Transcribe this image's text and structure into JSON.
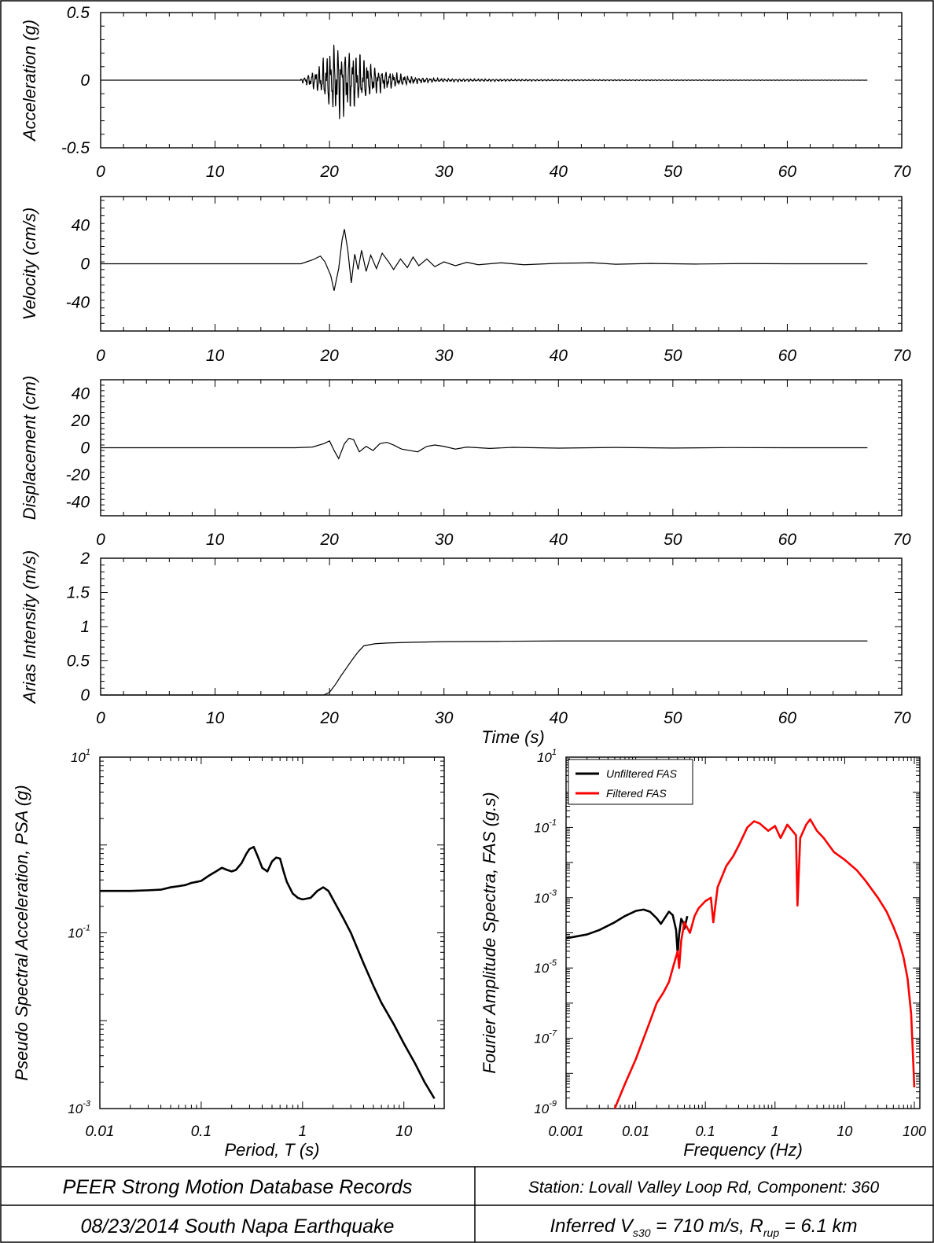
{
  "colors": {
    "unfiltered": "#000000",
    "filtered": "#ff0000"
  },
  "chart_data": [
    {
      "type": "line",
      "id": "acc",
      "ylabel": "Acceleration (g)",
      "xlabel": "",
      "xlim": [
        0,
        70
      ],
      "ylim": [
        -0.5,
        0.5
      ],
      "x_ticks": [
        0,
        10,
        20,
        30,
        40,
        50,
        60,
        70
      ],
      "x_tick_labels": [
        "0",
        "10",
        "20",
        "30",
        "40",
        "50",
        "60",
        "70"
      ],
      "y_ticks": [
        -0.5,
        0,
        0.5
      ],
      "y_tick_labels": [
        "-0.5",
        "0",
        "0.5"
      ],
      "record_start": 0,
      "record_end": 67,
      "series": [
        {
          "x": [
            17.5,
            19,
            20,
            20.5,
            21,
            22,
            23,
            24,
            25,
            26,
            27,
            28,
            30,
            35,
            40,
            50,
            60,
            67
          ],
          "envelope": [
            0.01,
            0.09,
            0.22,
            0.28,
            0.26,
            0.22,
            0.16,
            0.1,
            0.07,
            0.05,
            0.03,
            0.02,
            0.012,
            0.008,
            0.005,
            0.003,
            0.002,
            0.001
          ]
        }
      ]
    },
    {
      "type": "line",
      "id": "vel",
      "ylabel": "Velocity (cm/s)",
      "xlabel": "",
      "xlim": [
        0,
        70
      ],
      "ylim": [
        -70,
        70
      ],
      "x_ticks": [
        0,
        10,
        20,
        30,
        40,
        50,
        60,
        70
      ],
      "x_tick_labels": [
        "0",
        "10",
        "20",
        "30",
        "40",
        "50",
        "60",
        "70"
      ],
      "y_ticks": [
        -40,
        0,
        40
      ],
      "y_tick_labels": [
        "-40",
        "0",
        "40"
      ],
      "series": [
        {
          "x": [
            0,
            17.5,
            18.5,
            19.2,
            19.6,
            20.1,
            20.4,
            20.8,
            21.1,
            21.3,
            21.6,
            21.9,
            22.2,
            22.5,
            22.8,
            23.2,
            23.6,
            24.1,
            24.6,
            25.1,
            25.6,
            26.2,
            26.8,
            27.3,
            27.8,
            28.5,
            29.2,
            30,
            31,
            32,
            33,
            35,
            37,
            40,
            43,
            45,
            48,
            52,
            56,
            60,
            64,
            67
          ],
          "y": [
            0,
            0,
            4,
            8,
            2,
            -12,
            -28,
            -5,
            25,
            36,
            14,
            -20,
            10,
            -6,
            14,
            -8,
            9,
            -5,
            11,
            3,
            -6,
            5,
            -4,
            7,
            -2,
            5,
            -3,
            2,
            -2,
            1.5,
            -1,
            1,
            -1,
            0.5,
            1,
            -0.5,
            0.3,
            -0.3,
            0.2,
            0,
            0,
            0
          ]
        }
      ]
    },
    {
      "type": "line",
      "id": "disp",
      "ylabel": "Displacement (cm)",
      "xlabel": "",
      "xlim": [
        0,
        70
      ],
      "ylim": [
        -50,
        50
      ],
      "x_ticks": [
        0,
        10,
        20,
        30,
        40,
        50,
        60,
        70
      ],
      "x_tick_labels": [
        "0",
        "10",
        "20",
        "30",
        "40",
        "50",
        "60",
        "70"
      ],
      "y_ticks": [
        -40,
        -20,
        0,
        20,
        40
      ],
      "y_tick_labels": [
        "-40",
        "-20",
        "0",
        "20",
        "40"
      ],
      "series": [
        {
          "x": [
            0,
            17,
            18.5,
            19.5,
            20,
            20.4,
            20.8,
            21.3,
            21.7,
            22.1,
            22.6,
            23.2,
            23.8,
            24.4,
            25,
            25.6,
            26.3,
            27,
            27.7,
            28.5,
            29.2,
            30,
            31,
            32,
            34,
            36,
            40,
            45,
            50,
            55,
            60,
            67
          ],
          "y": [
            0,
            0,
            0.5,
            3,
            5,
            -2,
            -8,
            3,
            7,
            6,
            -3,
            1,
            -2,
            3,
            4,
            2,
            -1,
            -2,
            -3,
            1,
            2,
            1,
            -1,
            0.5,
            -0.5,
            0.3,
            -0.3,
            0.2,
            -0.2,
            0.1,
            0,
            0
          ]
        }
      ]
    },
    {
      "type": "line",
      "id": "arias",
      "ylabel": "Arias Intensity (m/s)",
      "xlabel": "Time (s)",
      "xlim": [
        0,
        70
      ],
      "ylim": [
        0,
        2
      ],
      "x_ticks": [
        0,
        10,
        20,
        30,
        40,
        50,
        60,
        70
      ],
      "x_tick_labels": [
        "0",
        "10",
        "20",
        "30",
        "40",
        "50",
        "60",
        "70"
      ],
      "y_ticks": [
        0,
        0.5,
        1,
        1.5,
        2
      ],
      "y_tick_labels": [
        "0",
        "0.5",
        "1",
        "1.5",
        "2"
      ],
      "series": [
        {
          "x": [
            0,
            19.5,
            20,
            20.5,
            21,
            21.5,
            22,
            22.5,
            23,
            24,
            25,
            27,
            30,
            35,
            40,
            50,
            60,
            67
          ],
          "y": [
            0,
            0,
            0.04,
            0.15,
            0.28,
            0.4,
            0.52,
            0.63,
            0.72,
            0.75,
            0.76,
            0.77,
            0.78,
            0.785,
            0.79,
            0.79,
            0.79,
            0.79
          ]
        }
      ]
    },
    {
      "type": "line",
      "id": "psa",
      "log_x": true,
      "log_y": true,
      "ylabel": "Pseudo Spectral Acceleration, PSA (g)",
      "xlabel": "Period, T (s)",
      "xlim": [
        0.01,
        25
      ],
      "ylim": [
        0.001,
        10
      ],
      "x_ticks": [
        0.01,
        0.1,
        1,
        10
      ],
      "x_tick_labels": [
        "0.01",
        "0.1",
        "1",
        "10"
      ],
      "y_ticks": [
        0.001,
        0.1,
        10
      ],
      "y_tick_base": "10",
      "y_tick_exp": [
        "-3",
        "-1",
        "1"
      ],
      "series": [
        {
          "x": [
            0.01,
            0.02,
            0.03,
            0.04,
            0.05,
            0.06,
            0.07,
            0.08,
            0.09,
            0.1,
            0.12,
            0.14,
            0.16,
            0.18,
            0.2,
            0.22,
            0.25,
            0.28,
            0.3,
            0.33,
            0.36,
            0.4,
            0.45,
            0.5,
            0.55,
            0.6,
            0.65,
            0.7,
            0.8,
            0.9,
            1.0,
            1.2,
            1.4,
            1.6,
            1.8,
            2.0,
            2.5,
            3,
            4,
            5,
            6,
            8,
            10,
            13,
            16,
            20
          ],
          "y": [
            0.3,
            0.3,
            0.305,
            0.31,
            0.33,
            0.34,
            0.35,
            0.37,
            0.38,
            0.39,
            0.45,
            0.5,
            0.55,
            0.52,
            0.5,
            0.52,
            0.62,
            0.8,
            0.9,
            0.95,
            0.75,
            0.55,
            0.5,
            0.65,
            0.72,
            0.7,
            0.5,
            0.38,
            0.28,
            0.25,
            0.24,
            0.25,
            0.3,
            0.33,
            0.3,
            0.24,
            0.15,
            0.1,
            0.045,
            0.025,
            0.016,
            0.009,
            0.0055,
            0.0032,
            0.002,
            0.0013
          ]
        }
      ]
    },
    {
      "type": "line",
      "id": "fas",
      "log_x": true,
      "log_y": true,
      "ylabel": "Fourier Amplitude Spectra, FAS (g.s)",
      "xlabel": "Frequency (Hz)",
      "xlim": [
        0.001,
        120
      ],
      "ylim": [
        1e-09,
        10
      ],
      "x_ticks": [
        0.001,
        0.01,
        0.1,
        1,
        10,
        100
      ],
      "x_tick_labels": [
        "0.001",
        "0.01",
        "0.1",
        "1",
        "10",
        "100"
      ],
      "y_ticks": [
        1e-09,
        1e-07,
        1e-05,
        0.001,
        0.1,
        10
      ],
      "y_tick_base": "10",
      "y_tick_exp": [
        "-9",
        "-7",
        "-5",
        "-3",
        "-1",
        "1"
      ],
      "legend": {
        "position": "top-left",
        "entries": [
          "Unfiltered FAS",
          "Filtered FAS"
        ]
      },
      "series": [
        {
          "name": "Unfiltered FAS",
          "x": [
            0.001,
            0.002,
            0.003,
            0.005,
            0.007,
            0.01,
            0.013,
            0.016,
            0.02,
            0.023,
            0.026,
            0.03,
            0.034,
            0.038,
            0.04,
            0.042,
            0.045,
            0.048,
            0.05,
            0.055
          ],
          "y": [
            7e-05,
            9e-05,
            0.00012,
            0.0002,
            0.0003,
            0.00042,
            0.00046,
            0.0004,
            0.00026,
            0.00018,
            0.00026,
            0.0004,
            0.00032,
            0.00012,
            2.5e-05,
            9e-05,
            0.00025,
            0.0002,
            0.00013,
            0.0003
          ]
        },
        {
          "name": "Filtered FAS",
          "x": [
            0.005,
            0.007,
            0.01,
            0.013,
            0.016,
            0.02,
            0.025,
            0.03,
            0.035,
            0.04,
            0.042,
            0.045,
            0.05,
            0.06,
            0.07,
            0.08,
            0.1,
            0.12,
            0.13,
            0.15,
            0.2,
            0.25,
            0.3,
            0.4,
            0.5,
            0.6,
            0.8,
            1.0,
            1.2,
            1.5,
            2.0,
            2.1,
            2.3,
            2.8,
            3.2,
            4,
            5,
            7,
            10,
            15,
            20,
            30,
            40,
            50,
            60,
            70,
            80,
            90,
            100
          ],
          "y": [
            1e-09,
            5e-09,
            2.5e-08,
            1e-07,
            3e-07,
            1e-06,
            2e-06,
            4e-06,
            1.2e-05,
            3e-05,
            1e-05,
            6e-05,
            0.0002,
            0.0001,
            0.0003,
            0.0005,
            0.0008,
            0.001,
            0.0002,
            0.002,
            0.008,
            0.015,
            0.03,
            0.1,
            0.15,
            0.13,
            0.08,
            0.11,
            0.05,
            0.12,
            0.06,
            0.0006,
            0.05,
            0.12,
            0.17,
            0.08,
            0.05,
            0.02,
            0.012,
            0.006,
            0.003,
            0.001,
            0.0004,
            0.00015,
            6e-05,
            2e-05,
            5e-06,
            5e-07,
            4e-09
          ]
        }
      ]
    }
  ],
  "footer": {
    "cell_tl": "PEER Strong Motion Database Records",
    "cell_tr": "Station: Lovall Valley Loop Rd, Component: 360",
    "cell_bl": "08/23/2014 South Napa Earthquake",
    "cell_br_prefix": "Inferred V",
    "cell_br_sub1": "s30",
    "cell_br_mid": " = 710 m/s, R",
    "cell_br_sub2": "rup",
    "cell_br_suffix": " = 6.1 km"
  }
}
